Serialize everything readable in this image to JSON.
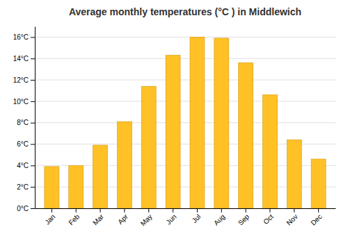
{
  "chart_data": {
    "type": "bar",
    "title": "Average monthly temperatures (°C ) in Middlewich",
    "categories": [
      "Jan",
      "Feb",
      "Mar",
      "Apr",
      "May",
      "Jun",
      "Jul",
      "Aug",
      "Sep",
      "Oct",
      "Nov",
      "Dec"
    ],
    "values": [
      3.9,
      4.0,
      5.9,
      8.1,
      11.4,
      14.3,
      16.0,
      15.9,
      13.6,
      10.6,
      6.4,
      4.6
    ],
    "color": "#FFC125",
    "ylim": [
      0,
      17
    ],
    "yticks": [
      {
        "value": 0,
        "label": "0°C"
      },
      {
        "value": 2,
        "label": "2°C"
      },
      {
        "value": 4,
        "label": "4°C"
      },
      {
        "value": 6,
        "label": "6°C"
      },
      {
        "value": 8,
        "label": "8°C"
      },
      {
        "value": 10,
        "label": "10°C"
      },
      {
        "value": 12,
        "label": "12°C"
      },
      {
        "value": 14,
        "label": "14°C"
      },
      {
        "value": 16,
        "label": "16°C"
      }
    ],
    "grid": true
  }
}
